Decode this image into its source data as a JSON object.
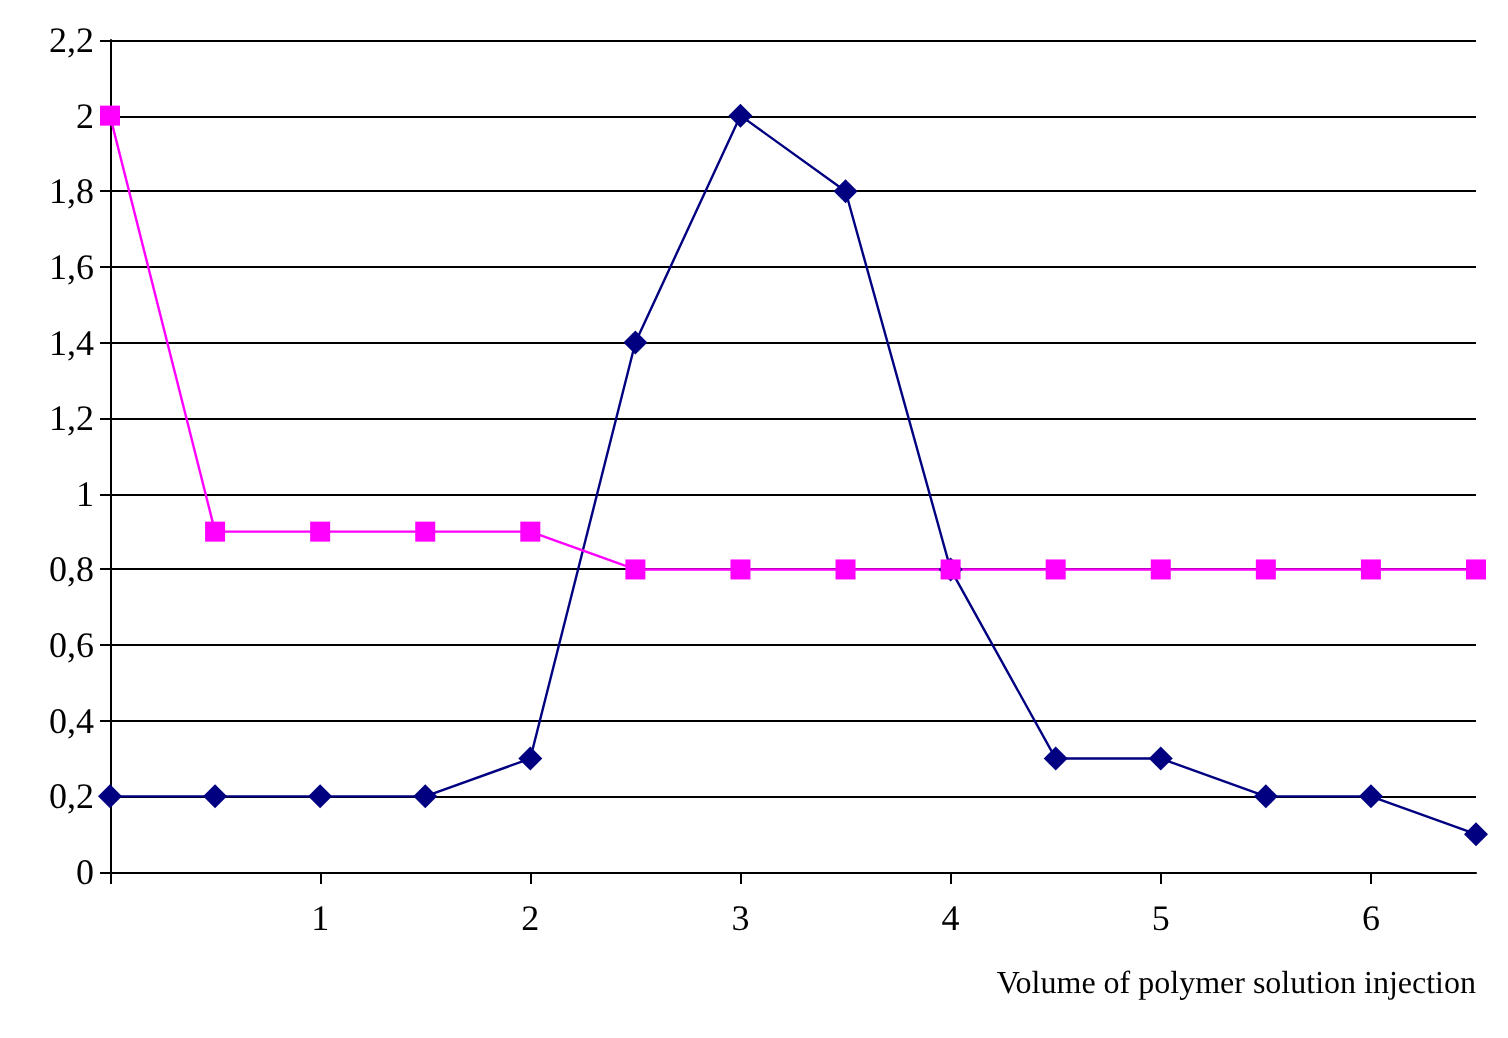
{
  "chart_data": {
    "type": "line",
    "xlabel": "Volume of polymer solution injection",
    "xlim": [
      0,
      6.5
    ],
    "xticks": [
      {
        "value": 0,
        "label": null
      },
      1,
      2,
      3,
      4,
      5,
      6
    ],
    "ylim": [
      0,
      2.2
    ],
    "yticks": [
      0,
      {
        "value": 0.2,
        "label": "0,2"
      },
      {
        "value": 0.4,
        "label": "0,4"
      },
      {
        "value": 0.6,
        "label": "0,6"
      },
      {
        "value": 0.8,
        "label": "0,8"
      },
      1,
      {
        "value": 1.2,
        "label": "1,2"
      },
      {
        "value": 1.4,
        "label": "1,4"
      },
      {
        "value": 1.6,
        "label": "1,6"
      },
      {
        "value": 1.8,
        "label": "1,8"
      },
      2,
      {
        "value": 2.2,
        "label": "2,2"
      }
    ],
    "grid": "y",
    "line_style": "solid",
    "x": [
      0,
      0.5,
      1,
      1.5,
      2,
      2.5,
      3,
      3.5,
      4,
      4.5,
      5,
      5.5,
      6,
      6.5
    ],
    "series": [
      {
        "color": "#000080",
        "marker": "diamond",
        "values": [
          0.2,
          0.2,
          0.2,
          0.2,
          0.3,
          1.4,
          2.0,
          1.8,
          0.8,
          0.3,
          0.3,
          0.2,
          0.2,
          0.1
        ]
      },
      {
        "color": "#ff00ff",
        "marker": "square",
        "values": [
          2.0,
          0.9,
          0.9,
          0.9,
          0.9,
          0.8,
          0.8,
          0.8,
          0.8,
          0.8,
          0.8,
          0.8,
          0.8,
          0.8
        ]
      }
    ]
  }
}
